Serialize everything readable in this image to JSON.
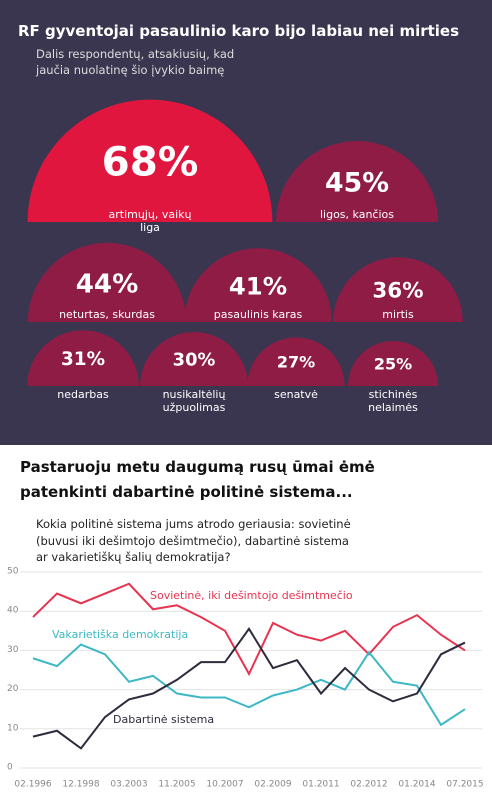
{
  "chart_data": [
    {
      "type": "semicircle",
      "title": "RF gyventojai pasaulinio karo bijo labiau nei mirties",
      "subtitle": "Dalis respondentų, atsakiusių, kad jaučia nuolatinę šio įvykio baimę",
      "categories": [
        "artimųjų, vaikų liga",
        "ligos, kančios",
        "neturtas, skurdas",
        "pasaulinis karas",
        "mirtis",
        "nedarbas",
        "nusikaltėlių užpuolimas",
        "senatvė",
        "stichinės nelaimės"
      ],
      "values": [
        68,
        45,
        44,
        41,
        36,
        31,
        30,
        27,
        25
      ],
      "value_labels": [
        "68%",
        "45%",
        "44%",
        "41%",
        "36%",
        "31%",
        "30%",
        "27%",
        "25%"
      ],
      "colors": [
        "#e0163f",
        "#8e1c45",
        "#8e1c45",
        "#8e1c45",
        "#8e1c45",
        "#8e1c45",
        "#8e1c45",
        "#8e1c45",
        "#8e1c45"
      ]
    },
    {
      "type": "line",
      "title": "Pastaruoju metu daugumą rusų ūmai ėmė patenkinti dabartinė politinė sistema...",
      "subtitle": "Kokia politinė sistema jums atrodo geriausia: sovietinė (buvusi iki dešimtojo dešimtmečio), dabartinė sistema ar vakarietiškų šalių demokratija?",
      "categories": [
        "02.1996",
        null,
        "12.1998",
        null,
        "03.2003",
        null,
        "11.2005",
        null,
        "10.2007",
        null,
        "02.2009",
        null,
        "01.2011",
        null,
        "02.2012",
        null,
        "01.2014",
        null,
        "07.2015"
      ],
      "series": [
        {
          "name": "Sovietinė, iki dešimtojo dešimtmečio",
          "color": "#e8334f",
          "values": [
            38.5,
            44.5,
            42,
            44.5,
            47,
            40.5,
            41.5,
            38.5,
            35,
            24,
            37,
            34,
            32.5,
            35,
            29,
            36,
            39,
            34,
            30
          ]
        },
        {
          "name": "Vakarietiška demokratija",
          "color": "#3db8c4",
          "values": [
            28,
            26,
            31.5,
            29,
            22,
            23.5,
            19,
            18,
            18,
            15.5,
            18.5,
            20,
            22.5,
            20,
            29.5,
            22,
            21,
            11,
            15
          ]
        },
        {
          "name": "Dabartinė sistema",
          "color": "#2f2a3e",
          "values": [
            8,
            9.5,
            5,
            13,
            17.5,
            19,
            22.5,
            27,
            27,
            35.5,
            25.5,
            27.5,
            19,
            25.5,
            20,
            17,
            19,
            29,
            32
          ]
        }
      ],
      "ylim": [
        0,
        50
      ],
      "yticks": [
        0,
        10,
        20,
        30,
        40,
        50
      ],
      "grid": true
    }
  ]
}
